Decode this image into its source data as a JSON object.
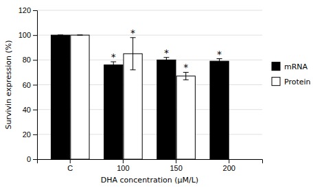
{
  "chart_data": {
    "type": "bar",
    "x_label": "DHA concentration (μM/L)",
    "y_label": "Survivin expression (%)",
    "categories": [
      "C",
      "100",
      "150",
      "200"
    ],
    "series": [
      {
        "name": "mRNA",
        "color": "#000000",
        "values": [
          100,
          76,
          80,
          79
        ],
        "errors": [
          0,
          2.5,
          2,
          2
        ],
        "annotations": [
          null,
          "*",
          "*",
          "*"
        ]
      },
      {
        "name": "Protein",
        "color": "#ffffff",
        "values": [
          100,
          85,
          67,
          null
        ],
        "errors": [
          0,
          13,
          3,
          null
        ],
        "annotations": [
          null,
          "*",
          "*",
          null
        ]
      }
    ],
    "ylim": [
      0,
      120
    ],
    "yticks": [
      0,
      20,
      40,
      60,
      80,
      100,
      120
    ],
    "grid": true,
    "legend": "right"
  }
}
